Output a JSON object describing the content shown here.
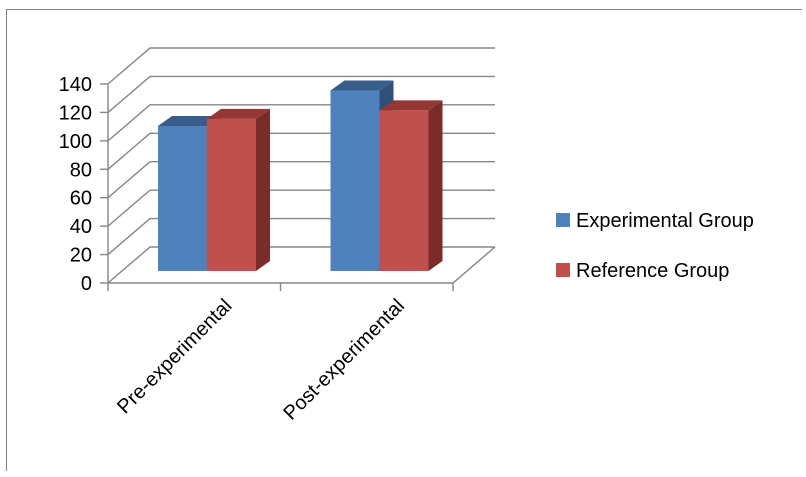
{
  "chart_data": {
    "type": "bar",
    "style": "3d-clustered-column",
    "categories": [
      "Pre-experimental",
      "Post-experimental"
    ],
    "series": [
      {
        "name": "Experimental Group",
        "values": [
          102,
          127
        ],
        "color": "#4f81bd",
        "top_color": "#385d8a",
        "side_color": "#2e5079"
      },
      {
        "name": "Reference Group",
        "values": [
          107,
          113
        ],
        "color": "#c0504d",
        "top_color": "#953735",
        "side_color": "#7a2c2a"
      }
    ],
    "ylim": [
      0,
      140
    ],
    "yticks": [
      0,
      20,
      40,
      60,
      80,
      100,
      120,
      140
    ],
    "grid": true,
    "legend": "right",
    "axis_color": "#868686"
  }
}
